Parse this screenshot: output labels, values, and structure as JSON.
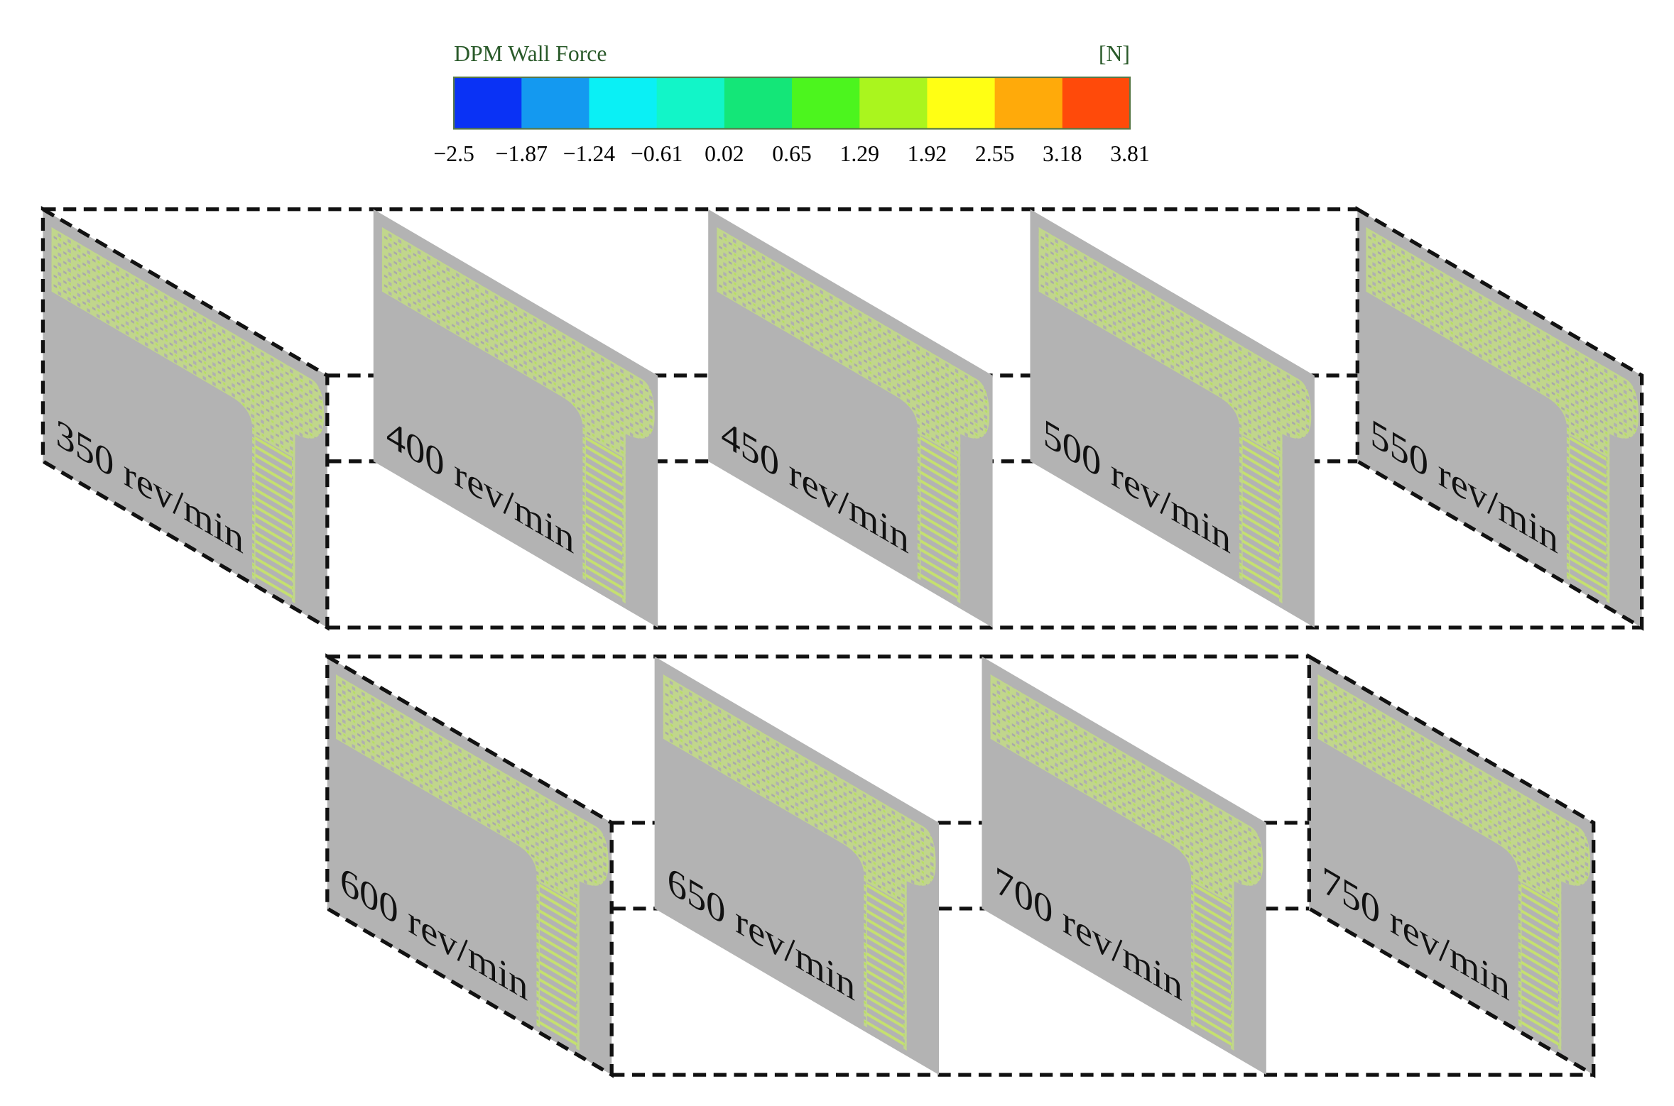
{
  "colorbar": {
    "title": "DPM Wall Force",
    "unit": "[N]",
    "colors": [
      "#0a32f5",
      "#1499f0",
      "#0af0f5",
      "#12f5c8",
      "#14e678",
      "#4cf51e",
      "#aaf51e",
      "#ffff14",
      "#ffaa0a",
      "#ff4a0a"
    ],
    "ticks": [
      "−2.5",
      "−1.87",
      "−1.24",
      "−0.61",
      "0.02",
      "0.65",
      "1.29",
      "1.92",
      "2.55",
      "3.18",
      "3.81"
    ]
  },
  "rows": [
    {
      "panels": [
        "350 rev/min",
        "400 rev/min",
        "450 rev/min",
        "500 rev/min",
        "550 rev/min"
      ]
    },
    {
      "panels": [
        "600 rev/min",
        "650 rev/min",
        "700 rev/min",
        "750 rev/min"
      ]
    }
  ]
}
